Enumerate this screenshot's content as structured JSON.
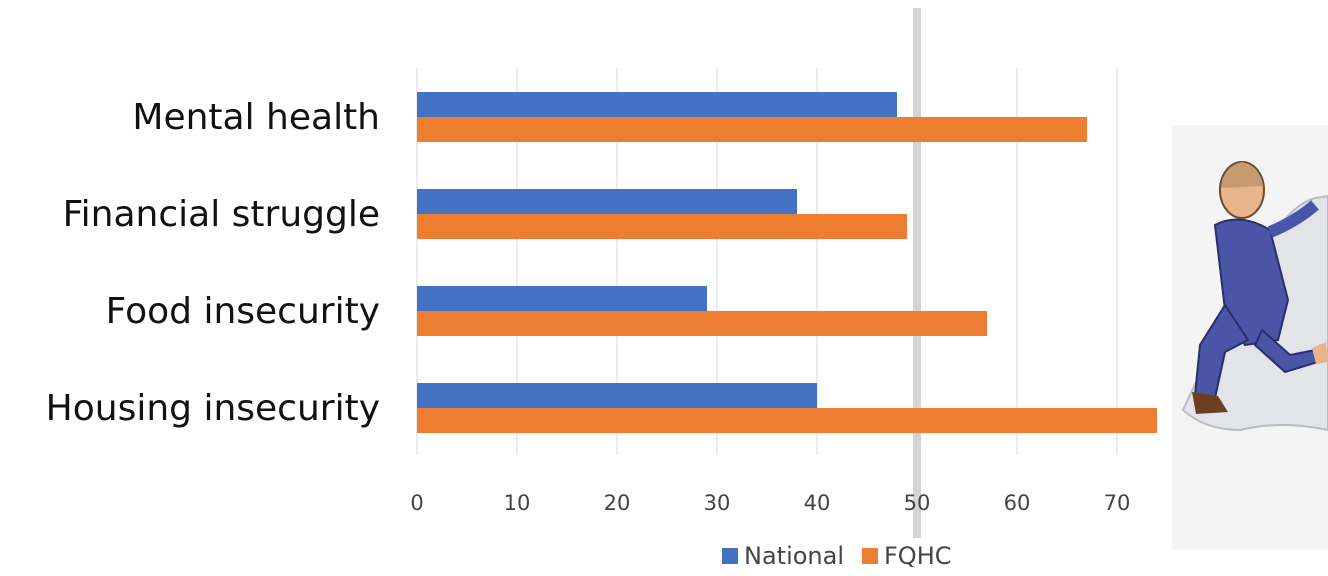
{
  "chart_data": {
    "type": "bar",
    "orientation": "horizontal",
    "categories": [
      "Mental health",
      "Financial struggle",
      "Food insecurity",
      "Housing insecurity"
    ],
    "series": [
      {
        "name": "National",
        "color": "#4472C4",
        "values": [
          48,
          38,
          29,
          40
        ]
      },
      {
        "name": "FQHC",
        "color": "#ED7D31",
        "values": [
          67,
          49,
          57,
          74
        ]
      }
    ],
    "xlim": [
      0,
      74
    ],
    "xticks": [
      0,
      10,
      20,
      30,
      40,
      50,
      60,
      70
    ],
    "grid": true,
    "legend_position": "bottom",
    "highlight_line": 50
  },
  "illustration": {
    "subject": "cartoon-man-climbing-icon"
  }
}
